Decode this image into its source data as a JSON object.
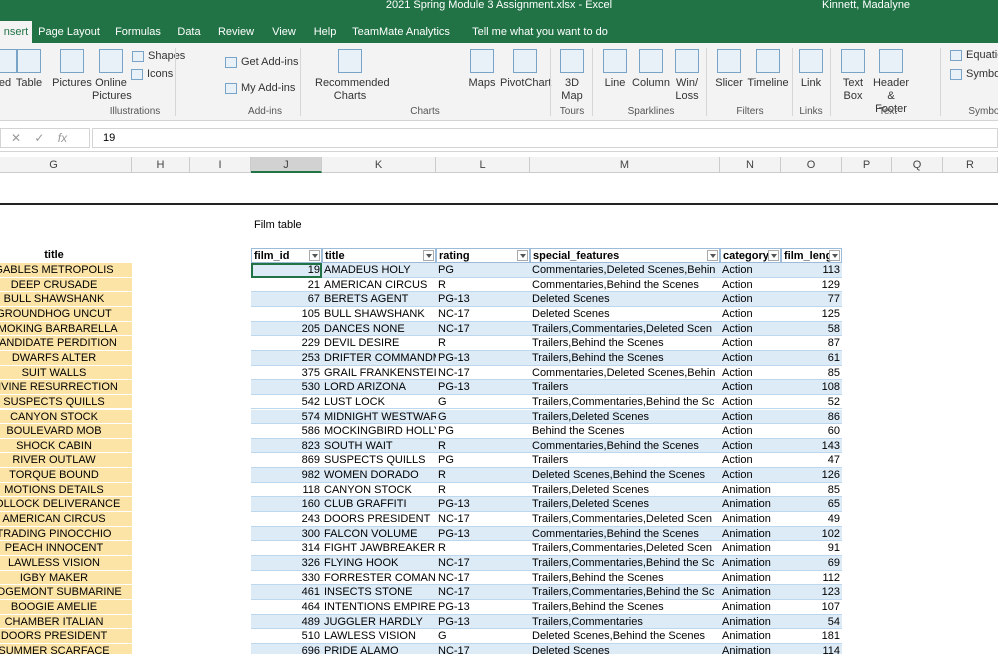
{
  "title_bar": {
    "file": "2021 Spring Module 3 Assignment.xlsx  -  Excel",
    "user": "Kinnett, Madalyne"
  },
  "tabs": [
    "nsert",
    "Page Layout",
    "Formulas",
    "Data",
    "Review",
    "View",
    "Help",
    "TeamMate Analytics",
    "Tell me what you want to do"
  ],
  "ribbon": {
    "buttons": [
      "ed",
      "Table",
      "Pictures",
      "Online Pictures",
      "Shapes",
      "Icons",
      "Get Add-ins",
      "My Add-ins",
      "Recommended Charts",
      "Maps",
      "PivotChart",
      "3D Map",
      "Line",
      "Column",
      "Win/ Loss",
      "Slicer",
      "Timeline",
      "Link",
      "Text Box",
      "Header & Footer",
      "Equatio",
      "Symbol"
    ],
    "groups": [
      "Illustrations",
      "Add-ins",
      "Charts",
      "Tours",
      "Sparklines",
      "Filters",
      "Links",
      "Text",
      "Symbol"
    ]
  },
  "formula_bar": {
    "fx": "fx",
    "value": "19"
  },
  "columns": [
    "G",
    "H",
    "I",
    "J",
    "K",
    "L",
    "M",
    "N",
    "O",
    "P",
    "Q",
    "R"
  ],
  "caption": "Film table",
  "title_list": {
    "header": "title",
    "items": [
      "GABLES METROPOLIS",
      "DEEP CRUSADE",
      "BULL SHAWSHANK",
      "GROUNDHOG UNCUT",
      "SMOKING BARBARELLA",
      "CANDIDATE PERDITION",
      "DWARFS ALTER",
      "SUIT WALLS",
      "DIVINE RESURRECTION",
      "SUSPECTS QUILLS",
      "CANYON STOCK",
      "BOULEVARD MOB",
      "SHOCK CABIN",
      "RIVER OUTLAW",
      "TORQUE BOUND",
      "MOTIONS DETAILS",
      "POLLOCK DELIVERANCE",
      "AMERICAN CIRCUS",
      "TRADING PINOCCHIO",
      "PEACH INNOCENT",
      "LAWLESS VISION",
      "IGBY MAKER",
      "RIDGEMONT SUBMARINE",
      "BOOGIE AMELIE",
      "CHAMBER ITALIAN",
      "DOORS PRESIDENT",
      "SUMMER SCARFACE"
    ]
  },
  "film_table": {
    "headers": [
      "film_id",
      "title",
      "rating",
      "special_features",
      "category",
      "film_leng"
    ],
    "rows": [
      [
        19,
        "AMADEUS HOLY",
        "PG",
        "Commentaries,Deleted Scenes,Behin",
        "Action",
        113
      ],
      [
        21,
        "AMERICAN CIRCUS",
        "R",
        "Commentaries,Behind the Scenes",
        "Action",
        129
      ],
      [
        67,
        "BERETS AGENT",
        "PG-13",
        "Deleted Scenes",
        "Action",
        77
      ],
      [
        105,
        "BULL SHAWSHANK",
        "NC-17",
        "Deleted Scenes",
        "Action",
        125
      ],
      [
        205,
        "DANCES NONE",
        "NC-17",
        "Trailers,Commentaries,Deleted Scen",
        "Action",
        58
      ],
      [
        229,
        "DEVIL DESIRE",
        "R",
        "Trailers,Behind the Scenes",
        "Action",
        87
      ],
      [
        253,
        "DRIFTER COMMANDM",
        "PG-13",
        "Trailers,Behind the Scenes",
        "Action",
        61
      ],
      [
        375,
        "GRAIL FRANKENSTEIN",
        "NC-17",
        "Commentaries,Deleted Scenes,Behin",
        "Action",
        85
      ],
      [
        530,
        "LORD ARIZONA",
        "PG-13",
        "Trailers",
        "Action",
        108
      ],
      [
        542,
        "LUST LOCK",
        "G",
        "Trailers,Commentaries,Behind the Sc",
        "Action",
        52
      ],
      [
        574,
        "MIDNIGHT WESTWARD",
        "G",
        "Trailers,Deleted Scenes",
        "Action",
        86
      ],
      [
        586,
        "MOCKINGBIRD HOLLYW",
        "PG",
        "Behind the Scenes",
        "Action",
        60
      ],
      [
        823,
        "SOUTH WAIT",
        "R",
        "Commentaries,Behind the Scenes",
        "Action",
        143
      ],
      [
        869,
        "SUSPECTS QUILLS",
        "PG",
        "Trailers",
        "Action",
        47
      ],
      [
        982,
        "WOMEN DORADO",
        "R",
        "Deleted Scenes,Behind the Scenes",
        "Action",
        126
      ],
      [
        118,
        "CANYON STOCK",
        "R",
        "Trailers,Deleted Scenes",
        "Animation",
        85
      ],
      [
        160,
        "CLUB GRAFFITI",
        "PG-13",
        "Trailers,Deleted Scenes",
        "Animation",
        65
      ],
      [
        243,
        "DOORS PRESIDENT",
        "NC-17",
        "Trailers,Commentaries,Deleted Scen",
        "Animation",
        49
      ],
      [
        300,
        "FALCON VOLUME",
        "PG-13",
        "Commentaries,Behind the Scenes",
        "Animation",
        102
      ],
      [
        314,
        "FIGHT JAWBREAKER",
        "R",
        "Trailers,Commentaries,Deleted Scen",
        "Animation",
        91
      ],
      [
        326,
        "FLYING HOOK",
        "NC-17",
        "Trailers,Commentaries,Behind the Sc",
        "Animation",
        69
      ],
      [
        330,
        "FORRESTER COMANCH",
        "NC-17",
        "Trailers,Behind the Scenes",
        "Animation",
        112
      ],
      [
        461,
        "INSECTS STONE",
        "NC-17",
        "Trailers,Commentaries,Behind the Sc",
        "Animation",
        123
      ],
      [
        464,
        "INTENTIONS EMPIRE",
        "PG-13",
        "Trailers,Behind the Scenes",
        "Animation",
        107
      ],
      [
        489,
        "JUGGLER HARDLY",
        "PG-13",
        "Trailers,Commentaries",
        "Animation",
        54
      ],
      [
        510,
        "LAWLESS VISION",
        "G",
        "Deleted Scenes,Behind the Scenes",
        "Animation",
        181
      ],
      [
        696,
        "PRIDE ALAMO",
        "NC-17",
        "Deleted Scenes",
        "Animation",
        114
      ]
    ]
  }
}
